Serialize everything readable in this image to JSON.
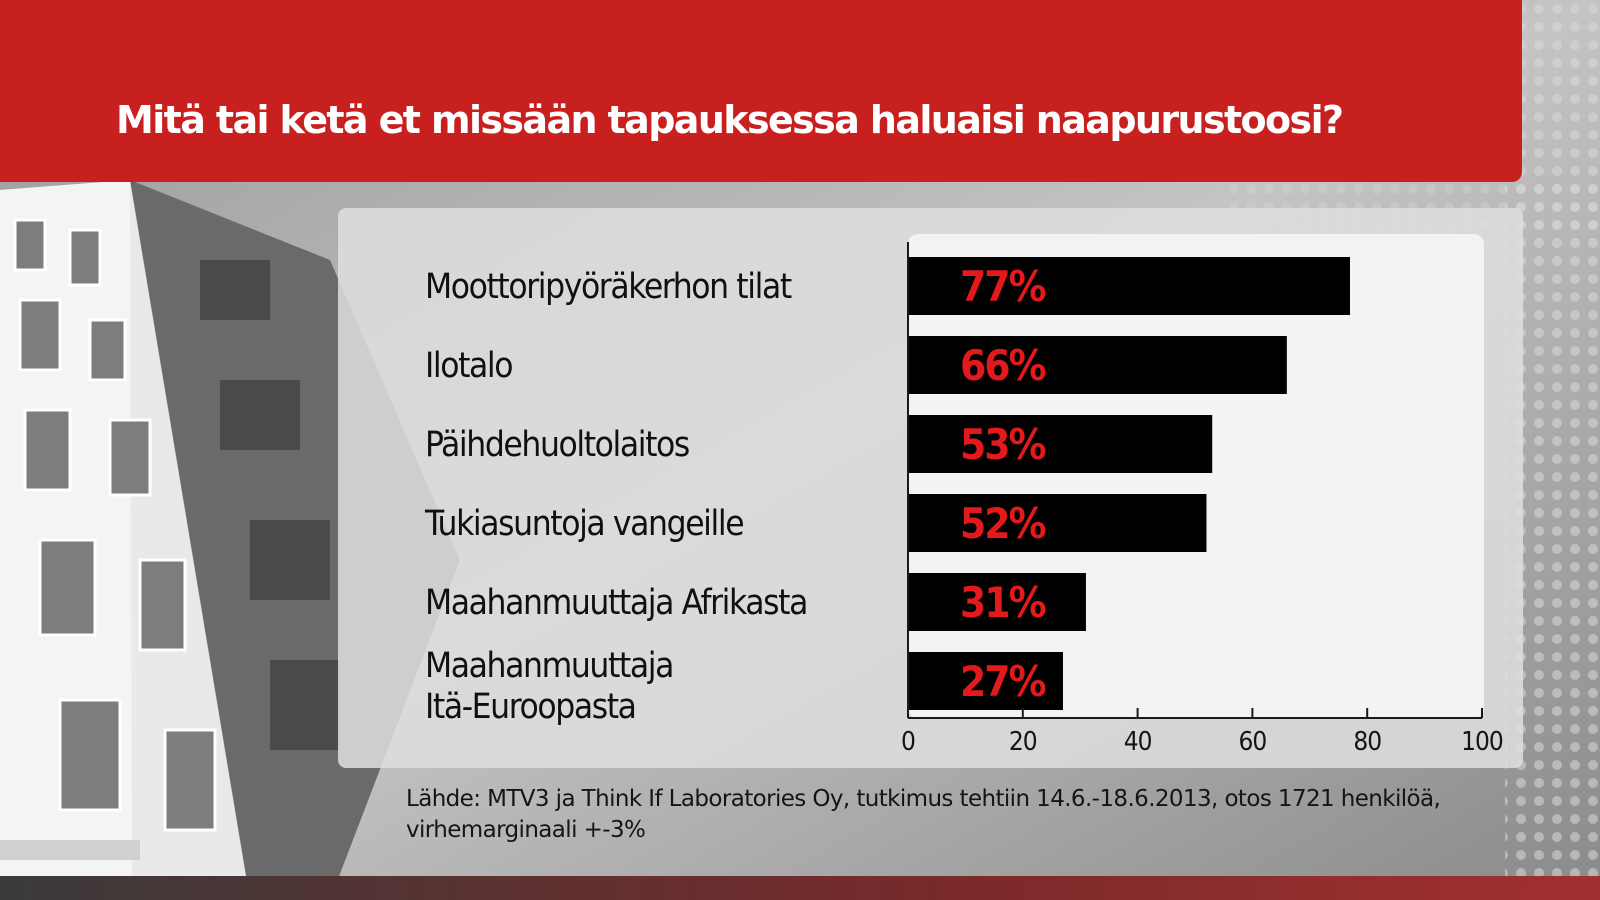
{
  "header": {
    "title": "Mitä tai ketä et missään tapauksessa haluaisi naapurustoosi?",
    "background_color": "#c8201f"
  },
  "chart_data": {
    "type": "bar",
    "orientation": "horizontal",
    "title": "Mitä tai ketä et missään tapauksessa haluaisi naapurustoosi?",
    "categories": [
      "Moottoripyöräkerhon tilat",
      "Ilotalo",
      "Päihdehuoltolaitos",
      "Tukiasuntoja vangeille",
      "Maahanmuuttaja Afrikasta",
      "Maahanmuuttaja\nItä-Euroopasta"
    ],
    "values": [
      77,
      66,
      53,
      52,
      31,
      27
    ],
    "value_labels": [
      "77%",
      "66%",
      "53%",
      "52%",
      "31%",
      "27%"
    ],
    "xlim": [
      0,
      100
    ],
    "xticks": [
      0,
      20,
      40,
      60,
      80,
      100
    ],
    "xtick_labels": [
      "0",
      "20",
      "40",
      "60",
      "80",
      "100"
    ],
    "xlabel": "",
    "ylabel": "",
    "grid": false,
    "legend": "none",
    "bar_color": "#000000",
    "label_color": "#e3191c"
  },
  "source": {
    "text": "Lähde: MTV3 ja Think If Laboratories Oy, tutkimus tehtiin 14.6.-18.6.2013, otos 1721 henkilöä, virhemarginaali +-3%"
  }
}
